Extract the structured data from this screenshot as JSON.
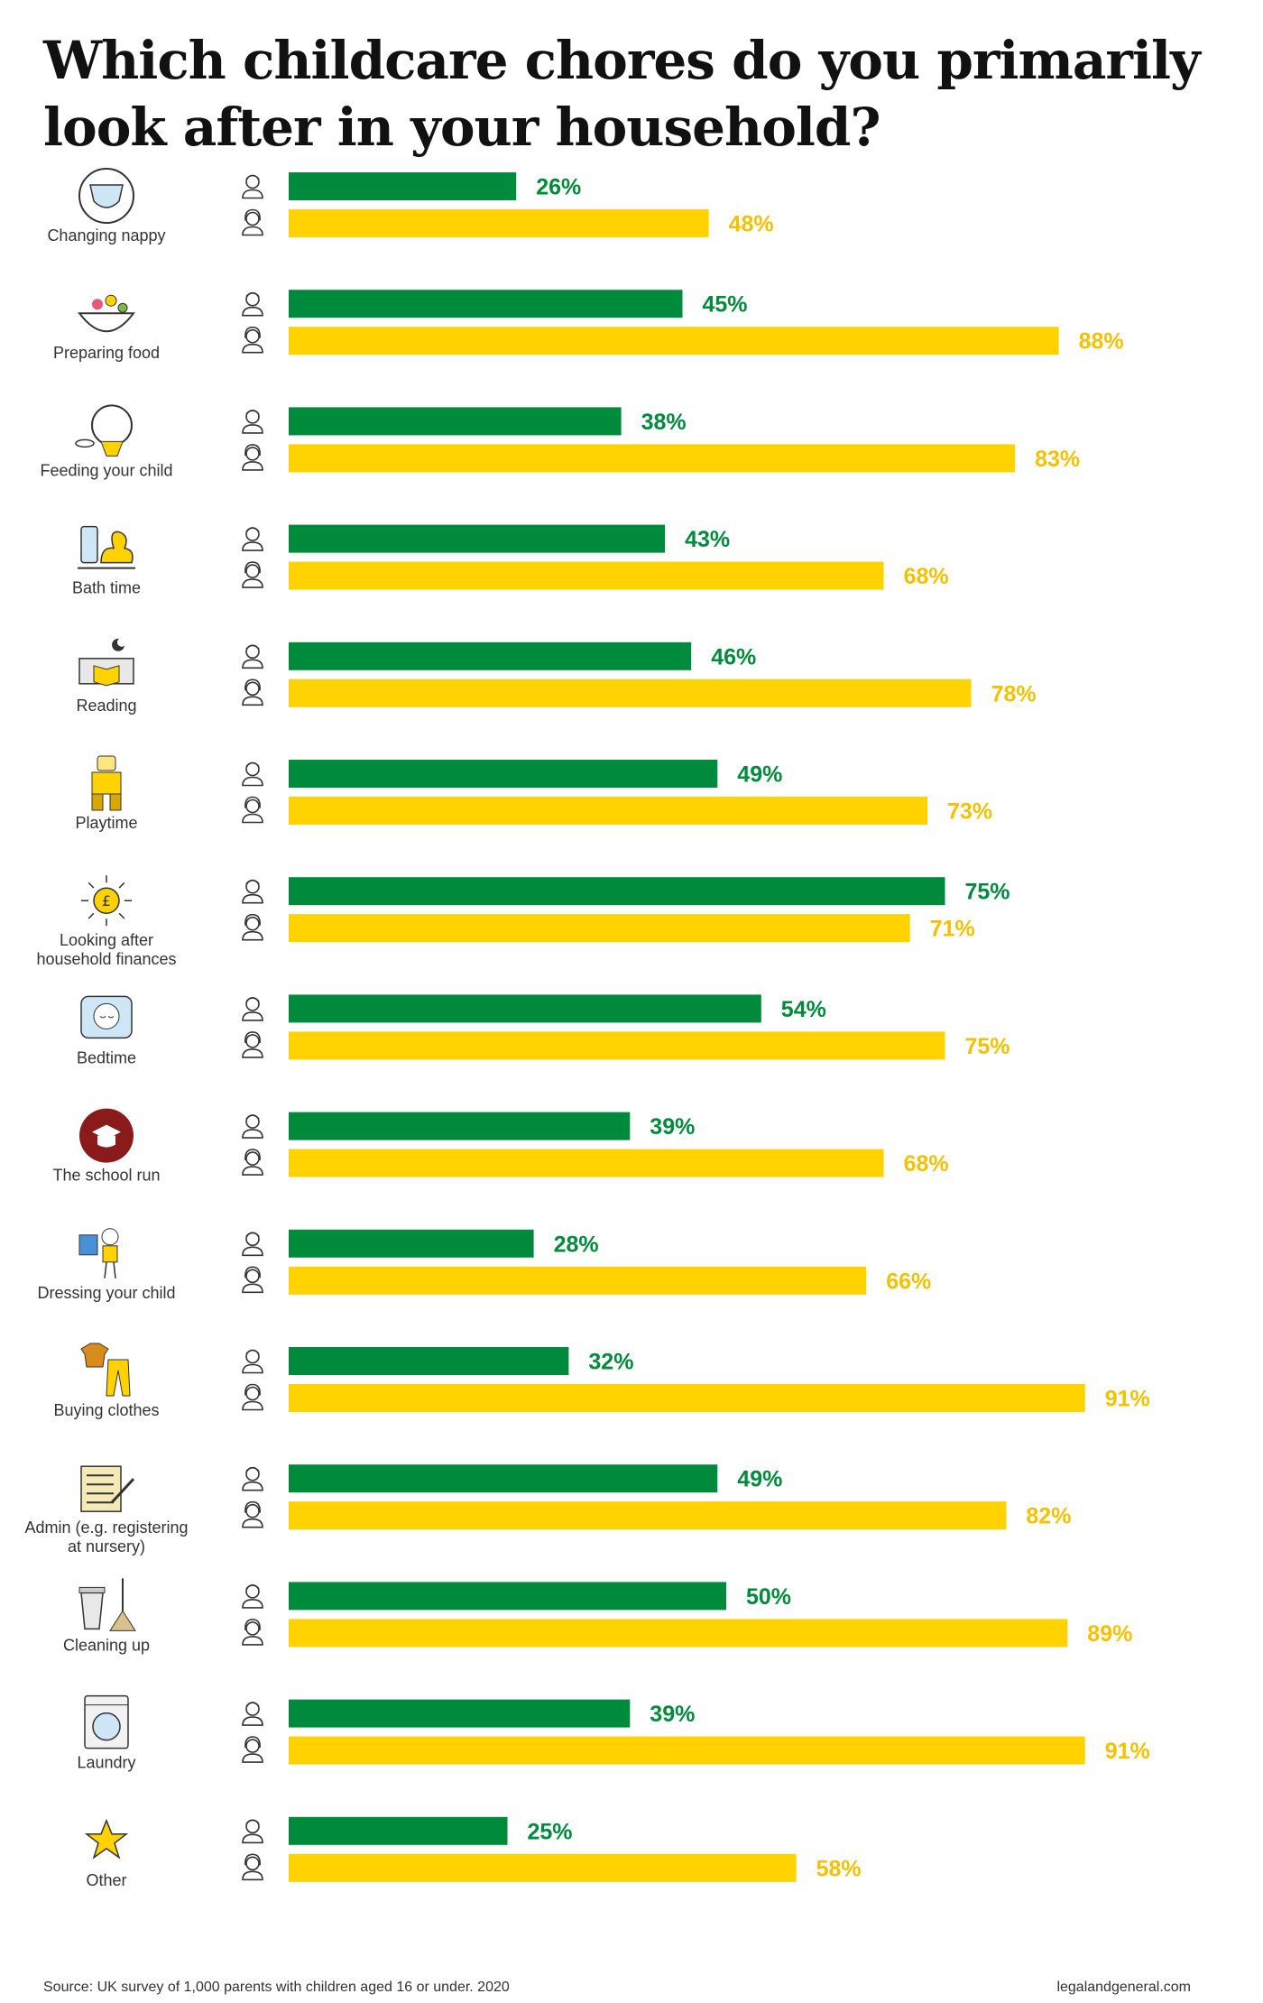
{
  "title_line1": "Which childcare chores do you primarily",
  "title_line2": "look after in your household?",
  "chart_data": {
    "type": "bar",
    "orientation": "horizontal",
    "categories": [
      [
        "Changing nappy"
      ],
      [
        "Preparing food"
      ],
      [
        "Feeding your child"
      ],
      [
        "Bath time"
      ],
      [
        "Reading"
      ],
      [
        "Playtime"
      ],
      [
        "Looking after",
        "household finances"
      ],
      [
        "Bedtime"
      ],
      [
        "The school run"
      ],
      [
        "Dressing your child"
      ],
      [
        "Buying clothes"
      ],
      [
        "Admin (e.g. registering",
        "at nursery)"
      ],
      [
        "Cleaning up"
      ],
      [
        "Laundry"
      ],
      [
        "Other"
      ]
    ],
    "icons": [
      "nappy-icon",
      "food-bowl-icon",
      "baby-bib-icon",
      "rubber-duck-icon",
      "bed-book-icon",
      "toy-robot-icon",
      "pound-coin-icon",
      "sleeping-child-icon",
      "graduation-cap-icon",
      "child-clothes-icon",
      "tshirt-trousers-icon",
      "form-pen-icon",
      "bin-broom-icon",
      "washing-machine-icon",
      "star-icon"
    ],
    "series": [
      {
        "values": [
          26,
          45,
          38,
          43,
          46,
          49,
          75,
          54,
          39,
          28,
          32,
          49,
          50,
          39,
          25
        ],
        "color": "#008a3c",
        "icon": "father-icon"
      },
      {
        "values": [
          48,
          88,
          83,
          68,
          78,
          73,
          71,
          75,
          68,
          66,
          91,
          82,
          89,
          91,
          58
        ],
        "color": "#ffd200",
        "icon": "mother-icon"
      }
    ],
    "value_suffix": "%",
    "xlim": [
      0,
      100
    ],
    "grid": false,
    "legend": "none"
  },
  "footer": {
    "source": "Source: UK survey of 1,000 parents with children aged 16 or under. 2020",
    "site": "legalandgeneral.com"
  }
}
